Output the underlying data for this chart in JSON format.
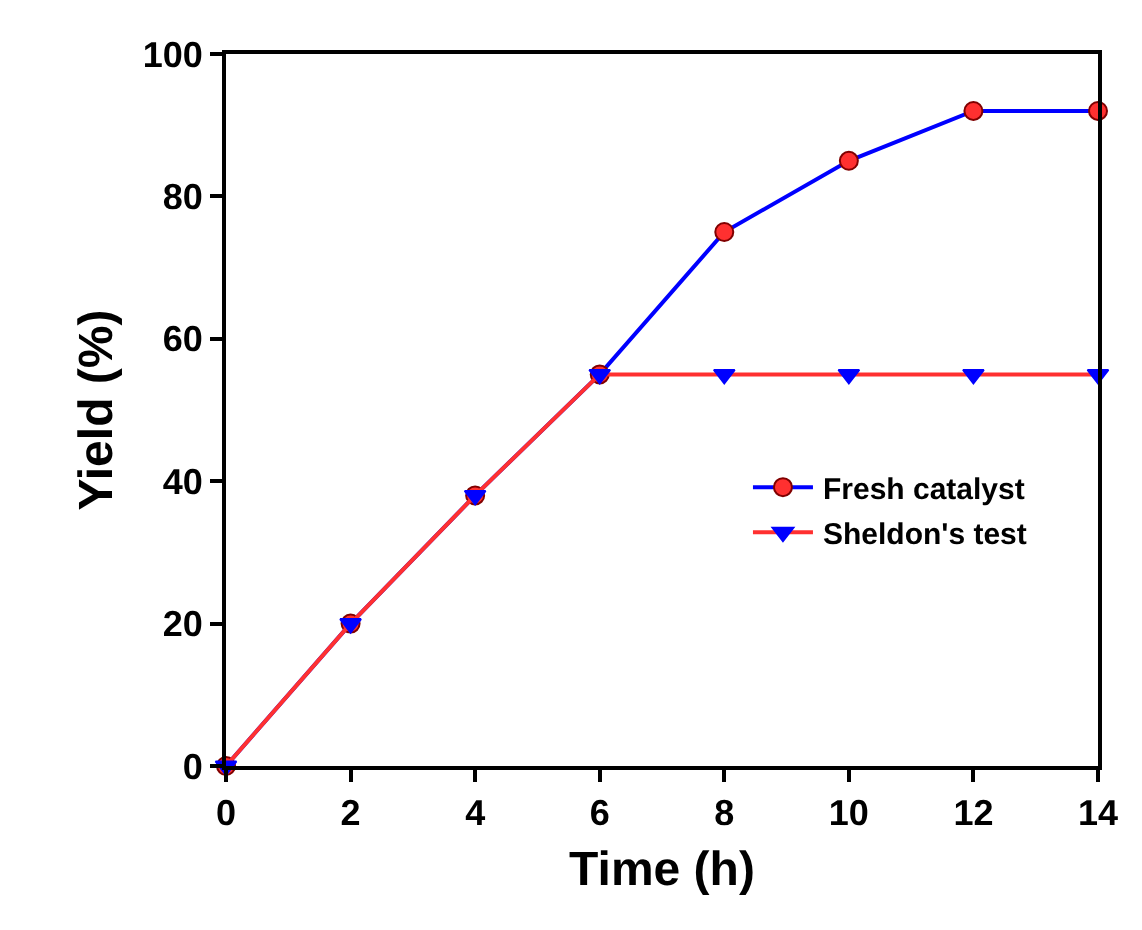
{
  "chart_data": {
    "type": "line",
    "xlabel": "Time (h)",
    "ylabel": "Yield (%)",
    "x": [
      0,
      2,
      4,
      6,
      8,
      10,
      12,
      14
    ],
    "series": [
      {
        "name": "Fresh catalyst",
        "color": "#ff3030",
        "marker": "circle",
        "values": [
          0,
          20,
          38,
          55,
          75,
          85,
          92,
          92
        ]
      },
      {
        "name": "Sheldon's test",
        "color": "#0000ff",
        "marker": "triangle",
        "values": [
          0,
          20,
          38,
          55,
          55,
          55,
          55,
          55
        ]
      }
    ],
    "xlim": [
      0,
      14
    ],
    "xticks": [
      0,
      2,
      4,
      6,
      8,
      10,
      12,
      14
    ],
    "ylim": [
      0,
      100
    ],
    "yticks": [
      0,
      20,
      40,
      60,
      80,
      100
    ],
    "legend": "center right",
    "line_style": "solid"
  }
}
